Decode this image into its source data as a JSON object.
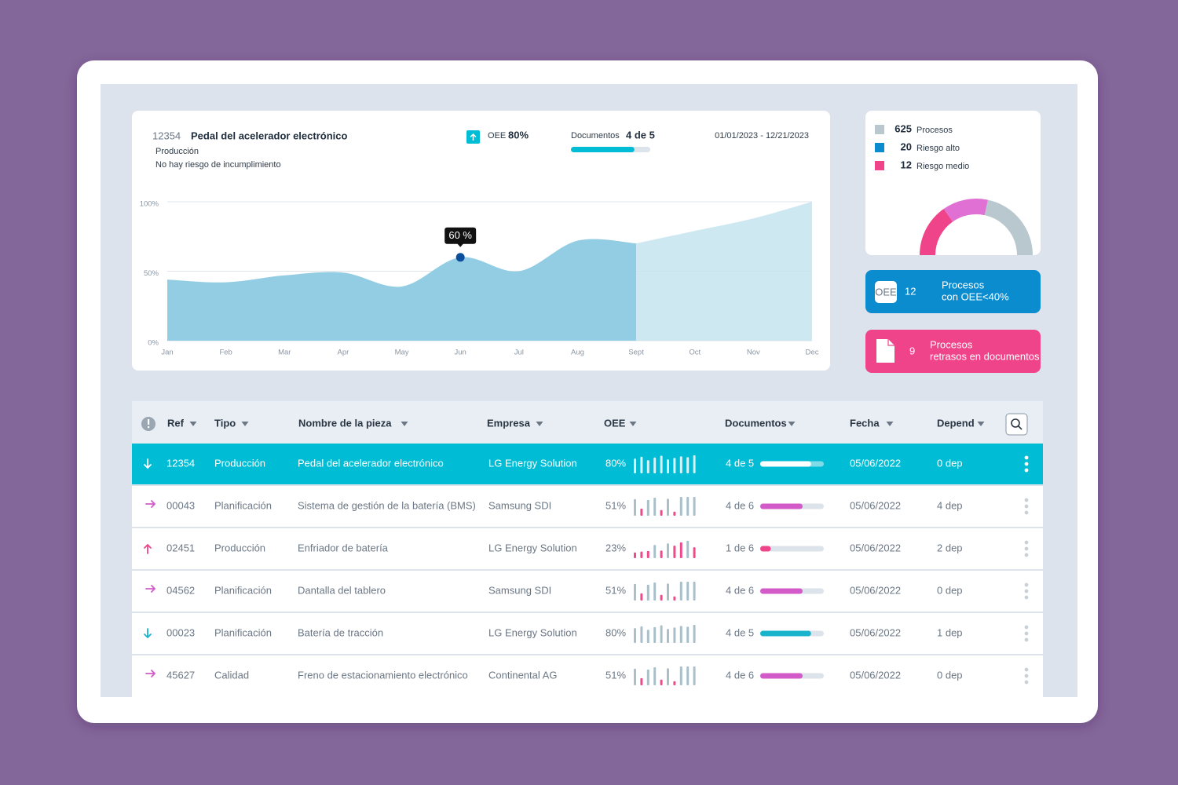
{
  "part": {
    "ref": "12354",
    "name": "Pedal del acelerador electrónico",
    "type": "Producción",
    "risk": "No hay riesgo de incumplimiento",
    "oee_label": "OEE",
    "oee": {
      "value": 80,
      "label": "80%"
    },
    "docs_label": "Documentos",
    "docs": {
      "value": 4,
      "total": 5,
      "label": "4 de 5"
    },
    "docs_color": "#00bcd4",
    "date_range": "01/01/2023 - 12/21/2023"
  },
  "chart_data": {
    "type": "area",
    "categories": [
      "Jan",
      "Feb",
      "Mar",
      "Apr",
      "May",
      "Jun",
      "Jul",
      "Aug",
      "Sept",
      "Oct",
      "Nov",
      "Dec"
    ],
    "series": [
      {
        "color": "#93cde4",
        "values": [
          44,
          42,
          47,
          49,
          39,
          60,
          50,
          72,
          70,
          null,
          null,
          null
        ],
        "value_labels": [
          null,
          null,
          null,
          null,
          null,
          "60 %",
          null,
          null,
          null,
          null,
          null,
          null
        ]
      },
      {
        "color": "#c6e4f0",
        "values": [
          null,
          null,
          null,
          null,
          null,
          null,
          null,
          null,
          70,
          79,
          88,
          100
        ]
      }
    ],
    "ylim": [
      0,
      100
    ],
    "yticks": [
      {
        "value": 0,
        "label": "0%"
      },
      {
        "value": 50,
        "label": "50%"
      },
      {
        "value": 100,
        "label": "100%"
      }
    ],
    "grid": true,
    "point_color": "#0b4f9c"
  },
  "summary": {
    "items": [
      {
        "value": 625,
        "label": "Procesos",
        "color": "#b9c8cf"
      },
      {
        "value": 20,
        "label": "Riesgo alto",
        "color": "#0a8ccf"
      },
      {
        "value": 12,
        "label": "Riesgo medio",
        "color": "#f0448a"
      }
    ],
    "cards": [
      {
        "icon": "OEE",
        "value": 12,
        "lines": [
          "Procesos",
          "con OEE<40%"
        ],
        "color": "#0a8ccf"
      },
      {
        "value": 9,
        "lines": [
          "Procesos",
          "retrasos en documentos"
        ],
        "color": "#f0448a"
      }
    ]
  },
  "table": {
    "columns": [
      "Ref",
      "Tipo",
      "Nombre de la pieza",
      "Empresa",
      "OEE",
      "Documentos",
      "Fecha",
      "Depend"
    ],
    "selected_row": 0,
    "trend_lim": [
      0,
      100
    ],
    "rows": [
      {
        "status": "down",
        "color": "#1ab3cc",
        "ref": "12354",
        "tipo": "Producción",
        "nombre": "Pedal del acelerador electrónico",
        "empresa": "LG Energy Solution",
        "oee": {
          "value": 80,
          "label": "80%"
        },
        "trend": [
          78,
          88,
          70,
          84,
          94,
          74,
          82,
          90,
          86,
          96
        ],
        "trend_colors": [
          "#a9bfca",
          "#a9bfca",
          "#a9bfca",
          "#a9bfca",
          "#a9bfca",
          "#a9bfca",
          "#a9bfca",
          "#a9bfca",
          "#a9bfca",
          "#a9bfca"
        ],
        "docs": {
          "value": 4,
          "total": 5,
          "label": "4 de 5"
        },
        "fecha": "05/06/2022",
        "dep": "0 dep"
      },
      {
        "status": "right",
        "color": "#d35bc9",
        "ref": "00043",
        "tipo": "Planificación",
        "nombre": "Sistema de gestión de la batería (BMS)",
        "empresa": "Samsung SDI",
        "oee": {
          "value": 51,
          "label": "51%"
        },
        "trend": [
          88,
          38,
          84,
          96,
          30,
          90,
          22,
          100,
          100,
          100
        ],
        "trend_colors": [
          "#a9bfca",
          "#ef4a8c",
          "#a9bfca",
          "#a9bfca",
          "#ef4a8c",
          "#a9bfca",
          "#ef4a8c",
          "#a9bfca",
          "#a9bfca",
          "#a9bfca"
        ],
        "docs": {
          "value": 4,
          "total": 6,
          "label": "4 de 6"
        },
        "fecha": "05/06/2022",
        "dep": "4 dep"
      },
      {
        "status": "up",
        "color": "#f0448a",
        "ref": "02451",
        "tipo": "Producción",
        "nombre": "Enfriador de batería",
        "empresa": "LG Energy Solution",
        "oee": {
          "value": 23,
          "label": "23%"
        },
        "trend": [
          30,
          35,
          38,
          70,
          40,
          78,
          66,
          84,
          92,
          58
        ],
        "trend_colors": [
          "#ef4a8c",
          "#ef4a8c",
          "#ef4a8c",
          "#a9bfca",
          "#ef4a8c",
          "#a9bfca",
          "#ef4a8c",
          "#ef4a8c",
          "#a9bfca",
          "#ef4a8c"
        ],
        "docs": {
          "value": 1,
          "total": 6,
          "label": "1 de 6"
        },
        "fecha": "05/06/2022",
        "dep": "2 dep"
      },
      {
        "status": "right",
        "color": "#d35bc9",
        "ref": "04562",
        "tipo": "Planificación",
        "nombre": "Dantalla del tablero",
        "empresa": "Samsung SDI",
        "oee": {
          "value": 51,
          "label": "51%"
        },
        "trend": [
          88,
          38,
          84,
          96,
          30,
          90,
          22,
          100,
          100,
          100
        ],
        "trend_colors": [
          "#a9bfca",
          "#ef4a8c",
          "#a9bfca",
          "#a9bfca",
          "#ef4a8c",
          "#a9bfca",
          "#ef4a8c",
          "#a9bfca",
          "#a9bfca",
          "#a9bfca"
        ],
        "docs": {
          "value": 4,
          "total": 6,
          "label": "4 de 6"
        },
        "fecha": "05/06/2022",
        "dep": "0 dep"
      },
      {
        "status": "down",
        "color": "#1ab3cc",
        "ref": "00023",
        "tipo": "Planificación",
        "nombre": "Batería de tracción",
        "empresa": "LG Energy Solution",
        "oee": {
          "value": 80,
          "label": "80%"
        },
        "trend": [
          78,
          88,
          70,
          84,
          94,
          74,
          82,
          90,
          86,
          96
        ],
        "trend_colors": [
          "#a9bfca",
          "#a9bfca",
          "#a9bfca",
          "#a9bfca",
          "#a9bfca",
          "#a9bfca",
          "#a9bfca",
          "#a9bfca",
          "#a9bfca",
          "#a9bfca"
        ],
        "docs": {
          "value": 4,
          "total": 5,
          "label": "4 de 5"
        },
        "fecha": "05/06/2022",
        "dep": "1 dep"
      },
      {
        "status": "right",
        "color": "#d35bc9",
        "ref": "45627",
        "tipo": "Calidad",
        "nombre": "Freno de estacionamiento electrónico",
        "empresa": "Continental AG",
        "oee": {
          "value": 51,
          "label": "51%"
        },
        "trend": [
          88,
          38,
          84,
          96,
          30,
          90,
          22,
          100,
          100,
          100
        ],
        "trend_colors": [
          "#a9bfca",
          "#ef4a8c",
          "#a9bfca",
          "#a9bfca",
          "#ef4a8c",
          "#a9bfca",
          "#ef4a8c",
          "#a9bfca",
          "#a9bfca",
          "#a9bfca"
        ],
        "docs": {
          "value": 4,
          "total": 6,
          "label": "4 de 6"
        },
        "fecha": "05/06/2022",
        "dep": "0 dep"
      }
    ]
  }
}
